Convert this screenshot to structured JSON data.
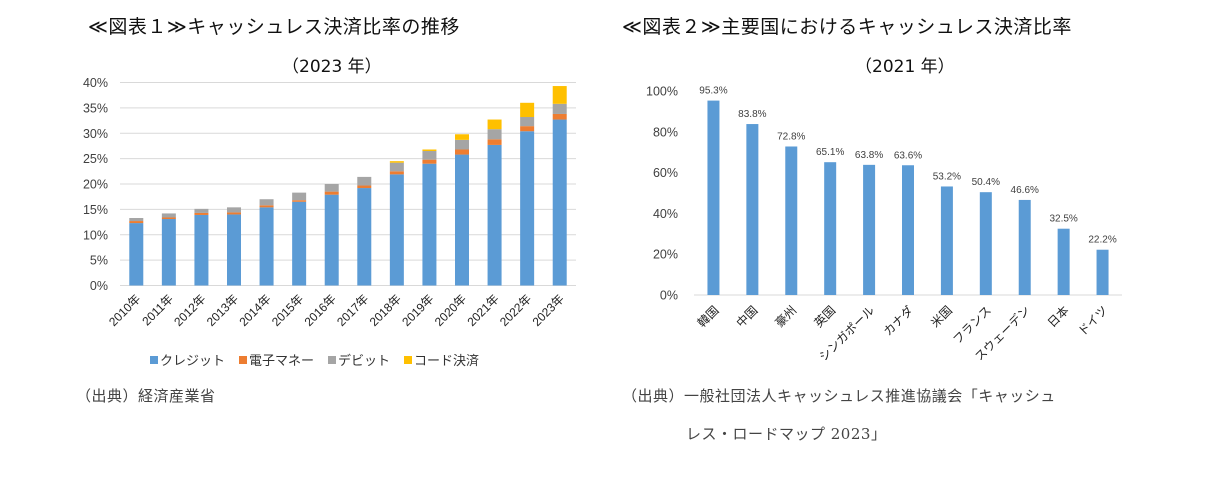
{
  "chart_data": [
    {
      "type": "bar",
      "stacked": true,
      "title": "≪図表１≫キャッシュレス決済比率の推移",
      "subtitle": "（2023 年）",
      "xlabel": "",
      "ylabel": "",
      "ylim": [
        0,
        40
      ],
      "yticks": [
        "0%",
        "5%",
        "10%",
        "15%",
        "20%",
        "25%",
        "30%",
        "35%",
        "40%"
      ],
      "ytick_values": [
        0,
        5,
        10,
        15,
        20,
        25,
        30,
        35,
        40
      ],
      "grid": true,
      "legend_position": "bottom",
      "categories": [
        "2010年",
        "2011年",
        "2012年",
        "2013年",
        "2014年",
        "2015年",
        "2016年",
        "2017年",
        "2018年",
        "2019年",
        "2020年",
        "2021年",
        "2022年",
        "2023年"
      ],
      "series": [
        {
          "name": "クレジット",
          "color": "#5b9bd5",
          "values": [
            12.3,
            13.1,
            13.9,
            14.0,
            15.4,
            16.5,
            17.9,
            19.2,
            21.9,
            24.0,
            25.8,
            27.7,
            30.4,
            32.7
          ]
        },
        {
          "name": "電子マネー",
          "color": "#ed7d31",
          "values": [
            0.4,
            0.3,
            0.4,
            0.4,
            0.4,
            0.3,
            0.6,
            0.5,
            0.6,
            0.8,
            1.0,
            1.1,
            1.0,
            1.1
          ]
        },
        {
          "name": "デビット",
          "color": "#a5a5a5",
          "values": [
            0.6,
            0.8,
            0.8,
            1.0,
            1.2,
            1.5,
            1.5,
            1.7,
            1.7,
            1.7,
            1.9,
            2.0,
            1.8,
            2.0
          ]
        },
        {
          "name": "コード決済",
          "color": "#ffc000",
          "values": [
            0,
            0,
            0,
            0,
            0,
            0,
            0,
            0,
            0.3,
            0.3,
            1.1,
            1.9,
            2.8,
            3.5
          ]
        }
      ],
      "source": "（出典）経済産業省"
    },
    {
      "type": "bar",
      "title": "≪図表２≫主要国におけるキャッシュレス決済比率",
      "subtitle": "（2021 年）",
      "xlabel": "",
      "ylabel": "",
      "ylim": [
        0,
        100
      ],
      "yticks": [
        "0%",
        "20%",
        "40%",
        "60%",
        "80%",
        "100%"
      ],
      "ytick_values": [
        0,
        20,
        40,
        60,
        80,
        100
      ],
      "grid": false,
      "categories": [
        "韓国",
        "中国",
        "豪州",
        "英国",
        "シンガポール",
        "カナダ",
        "米国",
        "フランス",
        "スウェーデン",
        "日本",
        "ドイツ"
      ],
      "values": [
        95.3,
        83.8,
        72.8,
        65.1,
        63.8,
        63.6,
        53.2,
        50.4,
        46.6,
        32.5,
        22.2
      ],
      "data_labels": [
        "95.3%",
        "83.8%",
        "72.8%",
        "65.1%",
        "63.8%",
        "63.6%",
        "53.2%",
        "50.4%",
        "46.6%",
        "32.5%",
        "22.2%"
      ],
      "color": "#5b9bd5",
      "source_line1": "（出典）一般社団法人キャッシュレス推進協議会「キャッシュ",
      "source_line2": "レス・ロードマップ 2023」"
    }
  ]
}
